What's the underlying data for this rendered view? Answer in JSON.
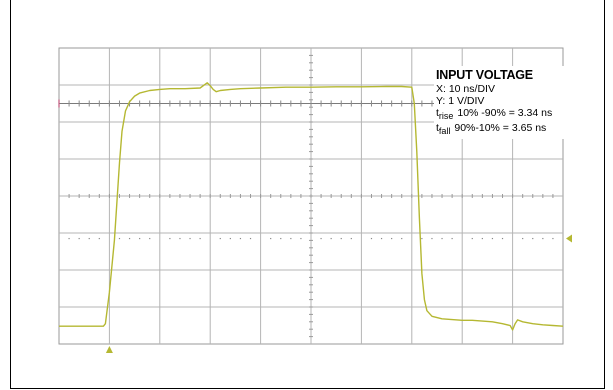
{
  "chart_data": {
    "type": "line",
    "title": "INPUT VOLTAGE",
    "xlabel": "",
    "ylabel": "",
    "x_scale": "X: 10 ns/DIV",
    "y_scale": "Y: 1 V/DIV",
    "divisions": {
      "x": 10,
      "y": 8
    },
    "xlim": [
      0,
      100
    ],
    "ylim": [
      -4,
      4
    ],
    "grid": true,
    "measurements": [
      {
        "symbol": "t",
        "subscript": "rise",
        "text": "10% -90% = 3.34 ns"
      },
      {
        "symbol": "t",
        "subscript": "fall",
        "text": "90%-10% = 3.65 ns"
      }
    ],
    "series": [
      {
        "color": "#b5b832",
        "x": [
          0,
          5,
          8.8,
          9.2,
          10,
          11,
          12,
          12.5,
          13.2,
          14,
          15,
          16,
          18,
          20,
          22,
          25,
          28,
          29.4,
          30,
          30.6,
          31.2,
          32,
          34,
          36,
          40,
          45,
          50,
          55,
          60,
          65,
          68,
          70,
          70.5,
          71,
          71.5,
          72,
          72.5,
          73,
          74,
          76,
          78,
          80,
          82,
          84,
          86,
          88,
          89.5,
          90,
          90.5,
          91,
          92,
          94,
          96,
          98,
          100
        ],
        "y": [
          -3.52,
          -3.52,
          -3.52,
          -3.45,
          -2.6,
          -1.2,
          0.9,
          1.75,
          2.3,
          2.55,
          2.7,
          2.78,
          2.85,
          2.88,
          2.9,
          2.9,
          2.92,
          3.06,
          2.98,
          2.88,
          2.82,
          2.85,
          2.88,
          2.9,
          2.92,
          2.94,
          2.94,
          2.95,
          2.95,
          2.96,
          2.96,
          2.94,
          2.5,
          1.2,
          -0.6,
          -2.1,
          -2.8,
          -3.1,
          -3.25,
          -3.32,
          -3.34,
          -3.36,
          -3.36,
          -3.38,
          -3.4,
          -3.45,
          -3.5,
          -3.62,
          -3.45,
          -3.35,
          -3.4,
          -3.45,
          -3.48,
          -3.5,
          -3.52
        ]
      }
    ],
    "markers": {
      "trigger_x": 10,
      "ground_y": -1.15
    }
  }
}
